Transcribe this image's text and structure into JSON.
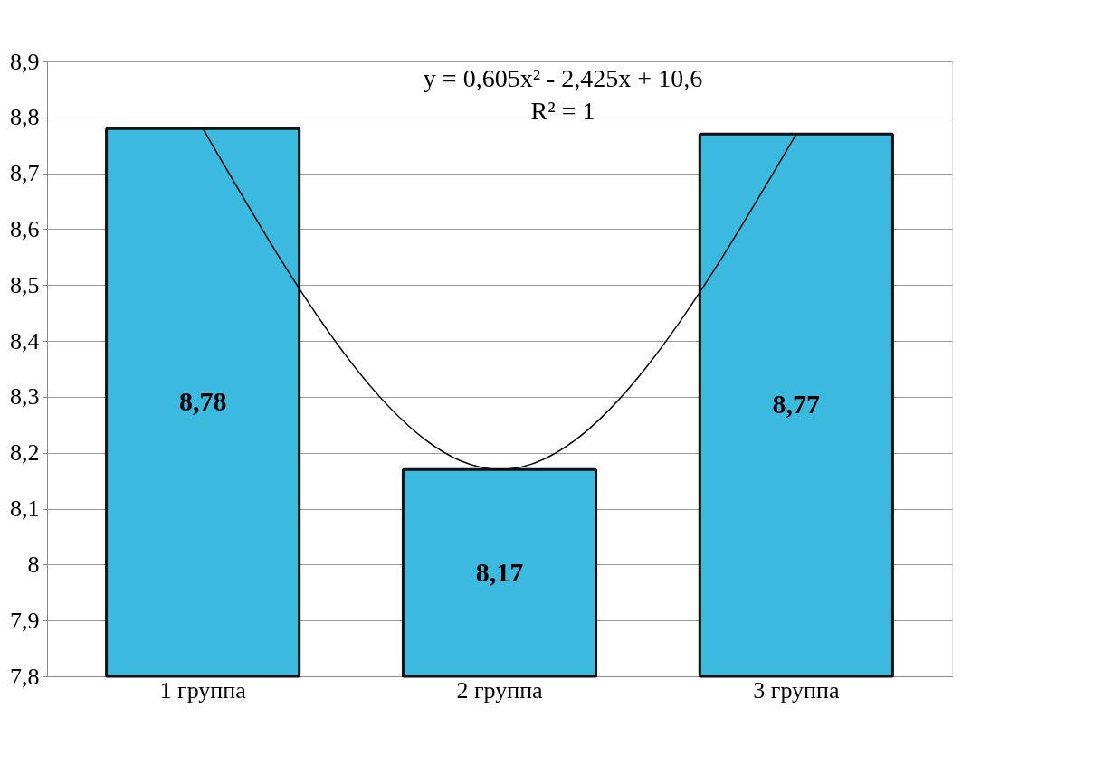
{
  "chart_data": {
    "type": "bar",
    "categories": [
      "1 группа",
      "2 группа",
      "3 группа"
    ],
    "series": [
      {
        "color": "#3bb9de",
        "values": [
          8.78,
          8.17,
          8.77
        ],
        "value_labels": [
          "8,78",
          "8,17",
          "8,77"
        ]
      },
      {
        "type": "line",
        "color": "#000000",
        "x": [
          "1 группа",
          "2 группа",
          "3 группа"
        ],
        "values": [
          8.78,
          8.17,
          8.77
        ]
      }
    ],
    "ylim": [
      7.8,
      8.9
    ],
    "yticks": [
      {
        "value": 7.8,
        "label": "7,8"
      },
      {
        "value": 7.9,
        "label": "7,9"
      },
      8,
      {
        "value": 8.1,
        "label": "8,1"
      },
      {
        "value": 8.2,
        "label": "8,2"
      },
      {
        "value": 8.3,
        "label": "8,3"
      },
      {
        "value": 8.4,
        "label": "8,4"
      },
      {
        "value": 8.5,
        "label": "8,5"
      },
      {
        "value": 8.6,
        "label": "8,6"
      },
      {
        "value": 8.7,
        "label": "8,7"
      },
      {
        "value": 8.8,
        "label": "8,8"
      },
      {
        "value": 8.9,
        "label": "8,9"
      }
    ],
    "annotations": [
      "y = 0,605x² - 2,425x + 10,6",
      "R² = 1"
    ],
    "grid": "y",
    "line_style": "solid"
  }
}
